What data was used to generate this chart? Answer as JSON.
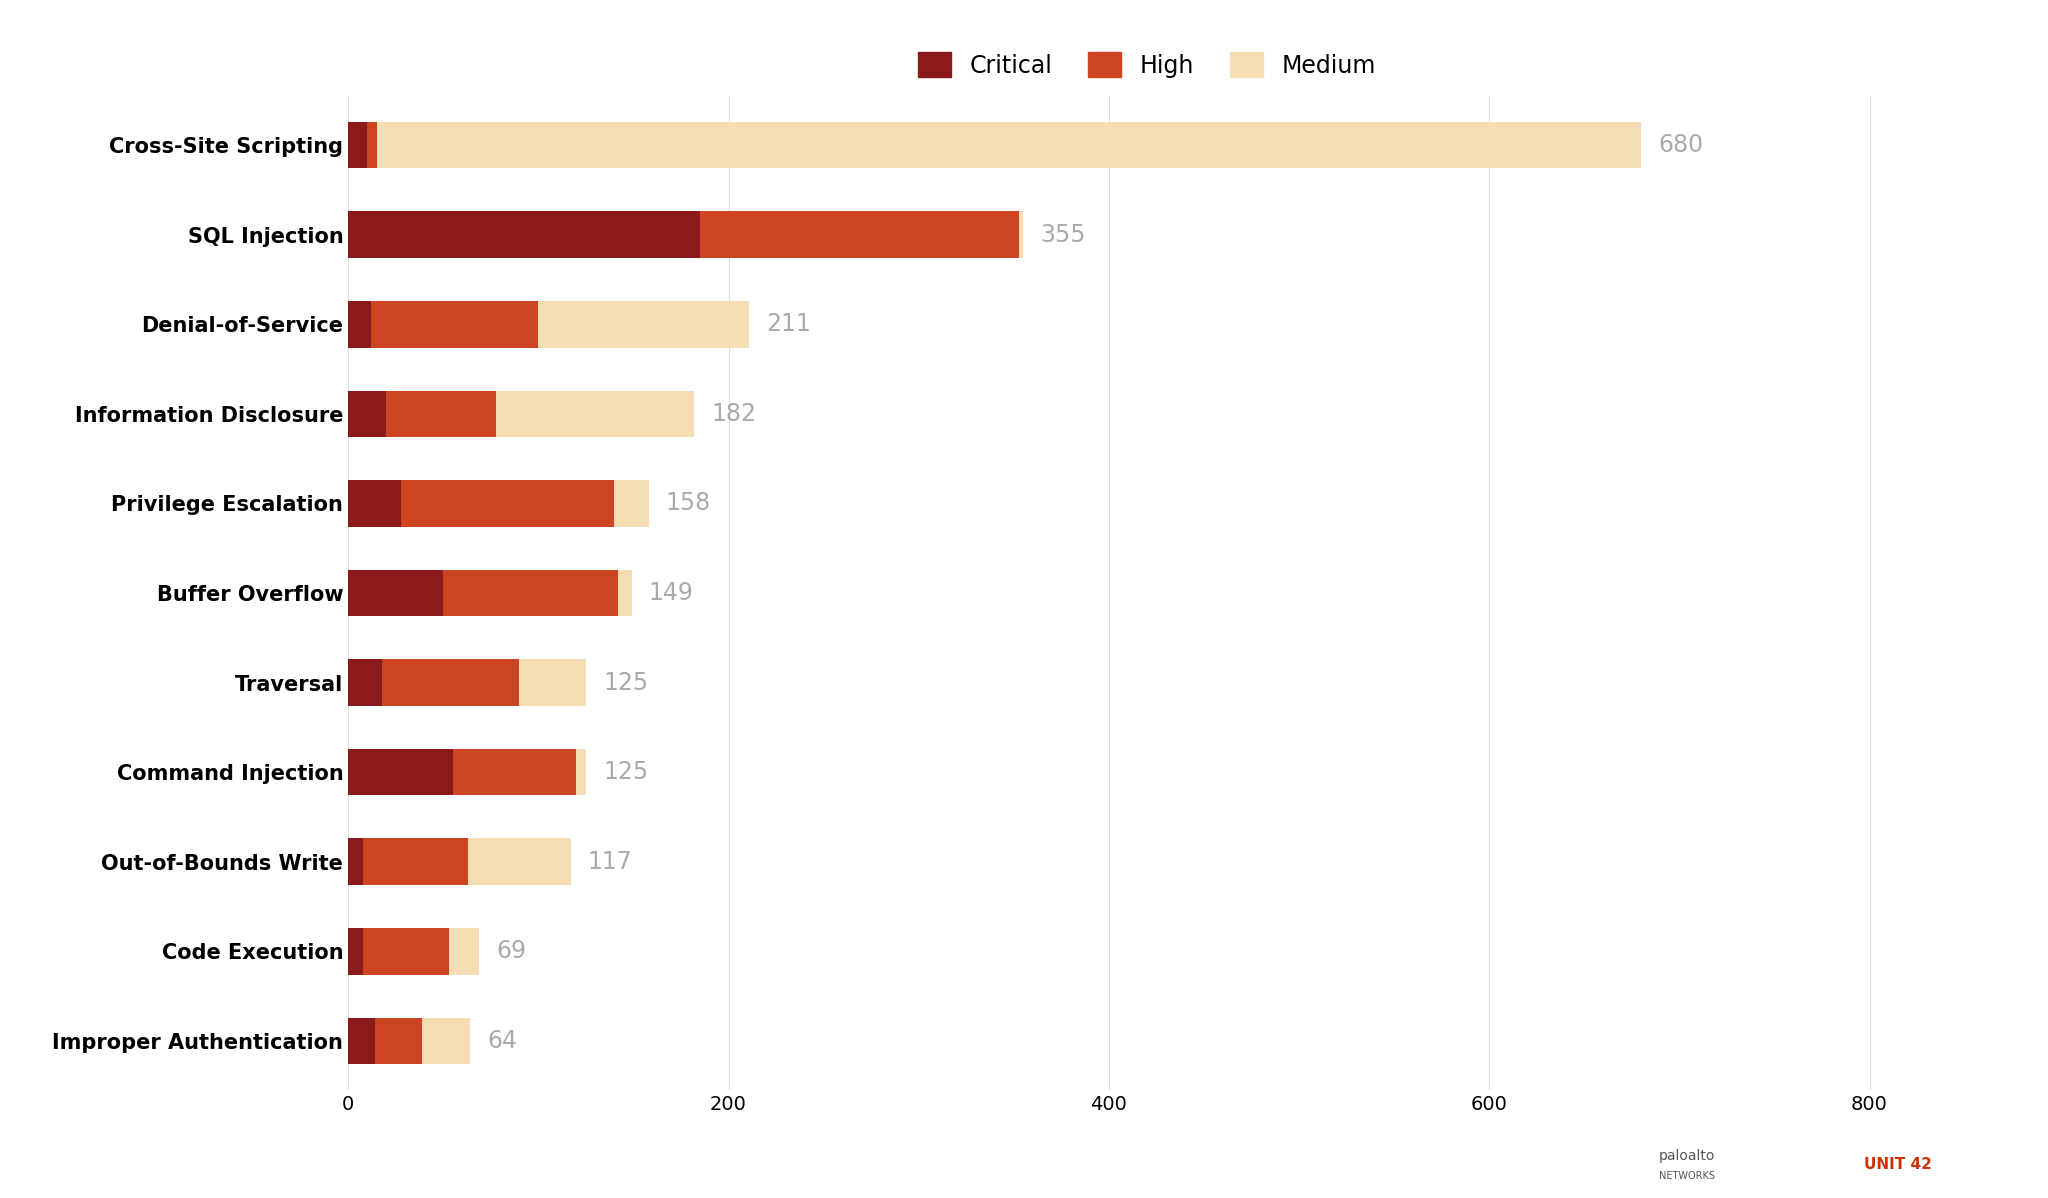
{
  "categories": [
    "Cross-Site Scripting",
    "SQL Injection",
    "Denial-of-Service",
    "Information Disclosure",
    "Privilege Escalation",
    "Buffer Overflow",
    "Traversal",
    "Command Injection",
    "Out-of-Bounds Write",
    "Code Execution",
    "Improper Authentication"
  ],
  "totals": [
    680,
    355,
    211,
    182,
    158,
    149,
    125,
    125,
    117,
    69,
    64
  ],
  "critical": [
    10,
    185,
    12,
    20,
    28,
    50,
    18,
    55,
    8,
    8,
    14
  ],
  "high": [
    5,
    168,
    88,
    58,
    112,
    92,
    72,
    65,
    55,
    45,
    25
  ],
  "medium": [
    665,
    2,
    111,
    104,
    18,
    7,
    35,
    5,
    54,
    16,
    25
  ],
  "color_critical": "#8B1A1A",
  "color_high": "#CC4422",
  "color_medium": "#F5DEB3",
  "xlim_max": 840,
  "xticks": [
    0,
    200,
    400,
    600,
    800
  ],
  "background_color": "#FFFFFF",
  "legend_labels": [
    "Critical",
    "High",
    "Medium"
  ],
  "label_color": "#AAAAAA",
  "label_fontsize": 17,
  "tick_fontsize": 14,
  "ytick_fontsize": 15,
  "bar_height": 0.52,
  "legend_fontsize": 17
}
